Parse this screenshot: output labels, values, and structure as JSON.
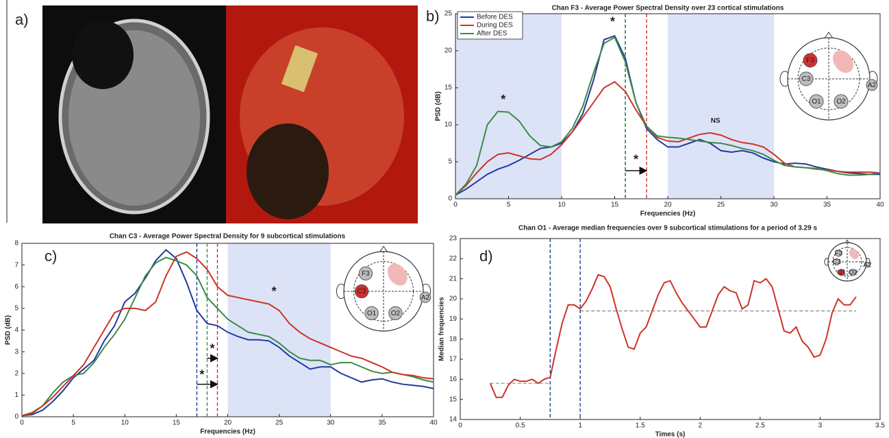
{
  "panel_a": {
    "label": "a)"
  },
  "chart_data": [
    {
      "type": "line",
      "panel_label": "b)",
      "title": "Chan F3 - Average Power Spectral Density over 23 cortical stimulations",
      "x_label": "Frequencies (Hz)",
      "y_label": "PSD (dB)",
      "x": [
        0,
        1,
        2,
        3,
        4,
        5,
        6,
        7,
        8,
        9,
        10,
        11,
        12,
        13,
        14,
        15,
        16,
        17,
        18,
        19,
        20,
        21,
        22,
        23,
        24,
        25,
        26,
        27,
        28,
        29,
        30,
        31,
        32,
        33,
        34,
        35,
        36,
        37,
        38,
        39,
        40
      ],
      "series": [
        {
          "name": "Before DES",
          "color": "#1f3a9e",
          "values": [
            0.5,
            1.3,
            2.3,
            3.3,
            4,
            4.5,
            5.2,
            6,
            6.8,
            7,
            7.5,
            9,
            11.5,
            16,
            21.5,
            22,
            19,
            13,
            9.5,
            8,
            7,
            7,
            7.5,
            8,
            7.5,
            6.5,
            6.3,
            6.5,
            6.2,
            5.5,
            5,
            4.7,
            4.8,
            4.7,
            4.3,
            4,
            3.7,
            3.5,
            3.4,
            3.3,
            3.3
          ]
        },
        {
          "name": "During DES",
          "color": "#cc3326",
          "values": [
            0.5,
            1.8,
            3.5,
            5,
            6,
            6.2,
            5.8,
            5.4,
            5.3,
            6,
            7.3,
            9,
            11,
            13,
            15,
            15.8,
            14.5,
            12,
            9.8,
            8.3,
            7.8,
            7.7,
            8.2,
            8.7,
            8.9,
            8.6,
            8,
            7.6,
            7.4,
            7,
            6,
            4.8,
            4.3,
            4.2,
            4,
            3.9,
            3.7,
            3.6,
            3.6,
            3.6,
            3.5
          ]
        },
        {
          "name": "After DES",
          "color": "#3d8a46",
          "values": [
            0.5,
            2,
            4.5,
            10,
            11.8,
            11.7,
            10.5,
            8.5,
            7.2,
            7,
            7.7,
            9.5,
            12.5,
            17,
            21,
            21.8,
            18.5,
            13,
            9.8,
            8.5,
            8.3,
            8.2,
            8,
            7.8,
            7.6,
            7.5,
            7.2,
            6.8,
            6.5,
            6,
            5.2,
            4.5,
            4.3,
            4.2,
            4.1,
            3.8,
            3.4,
            3.2,
            3.2,
            3.3,
            3.5
          ]
        }
      ],
      "xlim": [
        0,
        40
      ],
      "xticks": [
        0,
        5,
        10,
        15,
        20,
        25,
        30,
        35,
        40
      ],
      "ylim": [
        0,
        25
      ],
      "yticks": [
        0,
        5,
        10,
        15,
        20,
        25
      ],
      "shaded_ranges": [
        [
          0,
          10
        ],
        [
          20,
          30
        ]
      ],
      "shade_color": "#dce3f7",
      "vlines": [
        {
          "x": 16,
          "color": "#1f3a9e"
        },
        {
          "x": 16,
          "color": "#3d8a46"
        },
        {
          "x": 18,
          "color": "#cc3326"
        }
      ],
      "annotations": [
        "*",
        "*",
        "NS",
        "*"
      ],
      "legend": "upper left",
      "electrodes": [
        {
          "label": "F3",
          "color": "#d32f2f"
        },
        {
          "label": "C3",
          "color": "#bdbdbd"
        },
        {
          "label": "O1",
          "color": "#bdbdbd"
        },
        {
          "label": "O2",
          "color": "#bdbdbd"
        },
        {
          "label": "A2",
          "color": "#bdbdbd"
        }
      ]
    },
    {
      "type": "line",
      "panel_label": "c)",
      "title": "Chan C3 - Average Power Spectral Density for 9 subcortical stimulations",
      "x_label": "Frequencies (Hz)",
      "y_label": "PSD (dB)",
      "x": [
        0,
        1,
        2,
        3,
        4,
        5,
        6,
        7,
        8,
        9,
        10,
        11,
        12,
        13,
        14,
        15,
        16,
        17,
        18,
        19,
        20,
        21,
        22,
        23,
        24,
        25,
        26,
        27,
        28,
        29,
        30,
        31,
        32,
        33,
        34,
        35,
        36,
        37,
        38,
        39,
        40
      ],
      "series": [
        {
          "color": "#1f3a9e",
          "values": [
            0.05,
            0.1,
            0.3,
            0.7,
            1.2,
            1.8,
            2.2,
            2.6,
            3.5,
            4.2,
            5.3,
            5.7,
            6.4,
            7.2,
            7.7,
            7.3,
            6.2,
            4.9,
            4.3,
            4.2,
            3.9,
            3.7,
            3.55,
            3.55,
            3.5,
            3.2,
            2.8,
            2.5,
            2.2,
            2.3,
            2.3,
            2,
            1.8,
            1.6,
            1.7,
            1.75,
            1.6,
            1.5,
            1.45,
            1.4,
            1.3
          ]
        },
        {
          "color": "#3d8a46",
          "values": [
            0.05,
            0.2,
            0.5,
            1.1,
            1.6,
            1.9,
            2,
            2.5,
            3.2,
            3.8,
            4.5,
            5.5,
            6.5,
            7.1,
            7.35,
            7.2,
            7,
            6.5,
            5.5,
            5,
            4.5,
            4.2,
            3.9,
            3.8,
            3.7,
            3.4,
            3,
            2.7,
            2.6,
            2.6,
            2.4,
            2.5,
            2.5,
            2.3,
            2.1,
            2,
            2.05,
            1.95,
            1.85,
            1.7,
            1.6
          ]
        },
        {
          "color": "#cc3326",
          "values": [
            0.05,
            0.15,
            0.5,
            0.9,
            1.4,
            1.9,
            2.4,
            3.2,
            4,
            4.8,
            5,
            5,
            4.9,
            5.3,
            6.5,
            7.4,
            7.6,
            7.3,
            6.8,
            6,
            5.6,
            5.5,
            5.4,
            5.3,
            5.2,
            4.9,
            4.3,
            3.9,
            3.6,
            3.4,
            3.2,
            3,
            2.8,
            2.7,
            2.5,
            2.3,
            2.05,
            1.95,
            1.9,
            1.8,
            1.75
          ]
        }
      ],
      "xlim": [
        0,
        40
      ],
      "xticks": [
        0,
        5,
        10,
        15,
        20,
        25,
        30,
        35,
        40
      ],
      "ylim": [
        0,
        8
      ],
      "yticks": [
        0,
        1,
        2,
        3,
        4,
        5,
        6,
        7,
        8
      ],
      "shaded_ranges": [
        [
          20,
          30
        ]
      ],
      "shade_color": "#dce3f7",
      "vlines": [
        {
          "x": 17,
          "color": "#1f3a9e"
        },
        {
          "x": 18,
          "color": "#3d8a46"
        },
        {
          "x": 19,
          "color": "#cc3326"
        }
      ],
      "annotations": [
        "*",
        "*",
        "*"
      ],
      "electrodes": [
        {
          "label": "F3",
          "color": "#bdbdbd"
        },
        {
          "label": "C3",
          "color": "#d32f2f"
        },
        {
          "label": "O1",
          "color": "#bdbdbd"
        },
        {
          "label": "O2",
          "color": "#bdbdbd"
        },
        {
          "label": "A2",
          "color": "#bdbdbd"
        }
      ]
    },
    {
      "type": "line",
      "panel_label": "d)",
      "title": "Chan O1 - Average median frequencies over 9 subcortical stimulations for a period of 3.29 s",
      "x_label": "Times (s)",
      "y_label": "Median frequencies",
      "x": [
        0.25,
        0.3,
        0.35,
        0.4,
        0.45,
        0.5,
        0.55,
        0.6,
        0.65,
        0.7,
        0.75,
        0.8,
        0.85,
        0.9,
        0.95,
        1,
        1.05,
        1.1,
        1.15,
        1.2,
        1.25,
        1.3,
        1.35,
        1.4,
        1.45,
        1.5,
        1.55,
        1.6,
        1.65,
        1.7,
        1.75,
        1.8,
        1.85,
        1.9,
        1.95,
        2,
        2.05,
        2.1,
        2.15,
        2.2,
        2.25,
        2.3,
        2.35,
        2.4,
        2.45,
        2.5,
        2.55,
        2.6,
        2.65,
        2.7,
        2.75,
        2.8,
        2.85,
        2.9,
        2.95,
        3,
        3.05,
        3.1,
        3.15,
        3.2,
        3.25,
        3.3
      ],
      "series": [
        {
          "color": "#cc3326",
          "values": [
            15.8,
            15.1,
            15.1,
            15.7,
            16,
            15.9,
            15.9,
            16,
            15.8,
            16,
            16.1,
            17.5,
            18.8,
            19.7,
            19.7,
            19.5,
            19.9,
            20.5,
            21.2,
            21.1,
            20.6,
            19.5,
            18.5,
            17.6,
            17.5,
            18.3,
            18.6,
            19.4,
            20.2,
            20.8,
            20.9,
            20.3,
            19.8,
            19.4,
            19,
            18.6,
            18.6,
            19.4,
            20.2,
            20.6,
            20.4,
            20.3,
            19.5,
            19.7,
            20.9,
            20.8,
            21,
            20.6,
            19.5,
            18.4,
            18.3,
            18.6,
            17.9,
            17.6,
            17.1,
            17.2,
            18,
            19.3,
            20,
            19.7,
            19.7,
            20.1
          ]
        }
      ],
      "xlim": [
        0,
        3.5
      ],
      "xticks": [
        0,
        0.5,
        1,
        1.5,
        2,
        2.5,
        3,
        3.5
      ],
      "ylim": [
        14,
        23
      ],
      "yticks": [
        14,
        15,
        16,
        17,
        18,
        19,
        20,
        21,
        22,
        23
      ],
      "vlines": [
        {
          "x": 0.75,
          "color": "#1f3a9e"
        },
        {
          "x": 1,
          "color": "#1f3a9e"
        }
      ],
      "hlines": [
        {
          "y": 15.8,
          "x": [
            0.25,
            0.75
          ],
          "color": "#888888"
        },
        {
          "y": 19.4,
          "x": [
            1,
            3.3
          ],
          "color": "#888888"
        }
      ],
      "annotations": [],
      "electrodes": [
        {
          "label": "F3",
          "color": "#bdbdbd"
        },
        {
          "label": "C3",
          "color": "#bdbdbd"
        },
        {
          "label": "O1",
          "color": "#d32f2f"
        },
        {
          "label": "O2",
          "color": "#bdbdbd"
        },
        {
          "label": "A2",
          "color": "#bdbdbd"
        }
      ]
    }
  ]
}
